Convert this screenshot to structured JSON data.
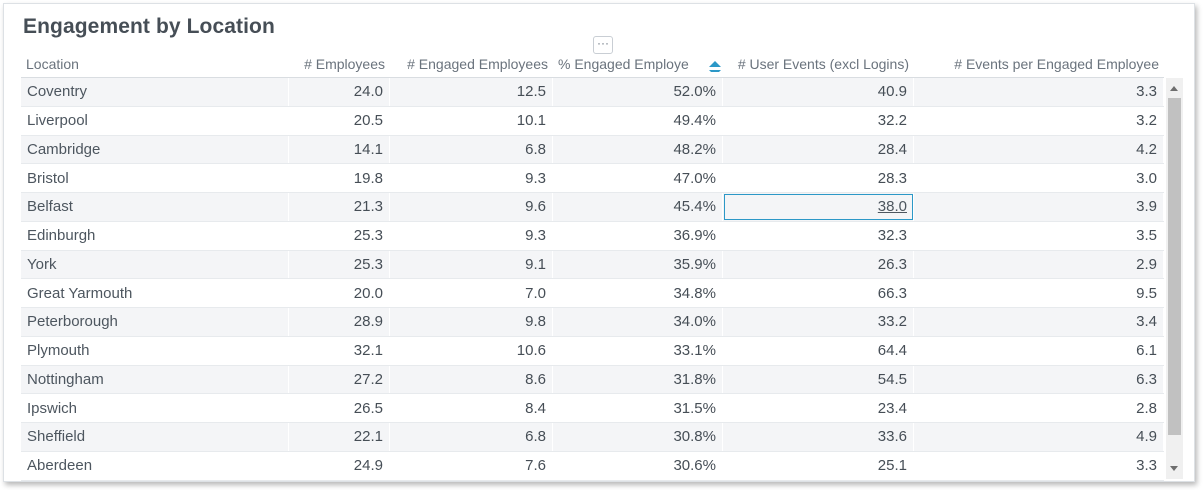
{
  "widget": {
    "title": "Engagement by Location",
    "menu_glyph": "···"
  },
  "table": {
    "columns": [
      {
        "label": "Location"
      },
      {
        "label": "# Employees"
      },
      {
        "label": "# Engaged Employees"
      },
      {
        "label": "% Engaged Employe"
      },
      {
        "label": "# User Events (excl Logins)"
      },
      {
        "label": "# Events per Engaged Employee"
      }
    ],
    "sort": {
      "column": "% Engaged Employees",
      "icon": "sort-icon",
      "color": "#2c98c7"
    },
    "selected_cell": {
      "row": 4,
      "col": 4
    },
    "rows": [
      [
        "Coventry",
        "24.0",
        "12.5",
        "52.0%",
        "40.9",
        "3.3"
      ],
      [
        "Liverpool",
        "20.5",
        "10.1",
        "49.4%",
        "32.2",
        "3.2"
      ],
      [
        "Cambridge",
        "14.1",
        "6.8",
        "48.2%",
        "28.4",
        "4.2"
      ],
      [
        "Bristol",
        "19.8",
        "9.3",
        "47.0%",
        "28.3",
        "3.0"
      ],
      [
        "Belfast",
        "21.3",
        "9.6",
        "45.4%",
        "38.0",
        "3.9"
      ],
      [
        "Edinburgh",
        "25.3",
        "9.3",
        "36.9%",
        "32.3",
        "3.5"
      ],
      [
        "York",
        "25.3",
        "9.1",
        "35.9%",
        "26.3",
        "2.9"
      ],
      [
        "Great Yarmouth",
        "20.0",
        "7.0",
        "34.8%",
        "66.3",
        "9.5"
      ],
      [
        "Peterborough",
        "28.9",
        "9.8",
        "34.0%",
        "33.2",
        "3.4"
      ],
      [
        "Plymouth",
        "32.1",
        "10.6",
        "33.1%",
        "64.4",
        "6.1"
      ],
      [
        "Nottingham",
        "27.2",
        "8.6",
        "31.8%",
        "54.5",
        "6.3"
      ],
      [
        "Ipswich",
        "26.5",
        "8.4",
        "31.5%",
        "23.4",
        "2.8"
      ],
      [
        "Sheffield",
        "22.1",
        "6.8",
        "30.8%",
        "33.6",
        "4.9"
      ],
      [
        "Aberdeen",
        "24.9",
        "7.6",
        "30.6%",
        "25.1",
        "3.3"
      ]
    ]
  },
  "colors": {
    "accent": "#2c98c7",
    "row_stripe": "#f4f5f7",
    "text": "#464e56"
  }
}
